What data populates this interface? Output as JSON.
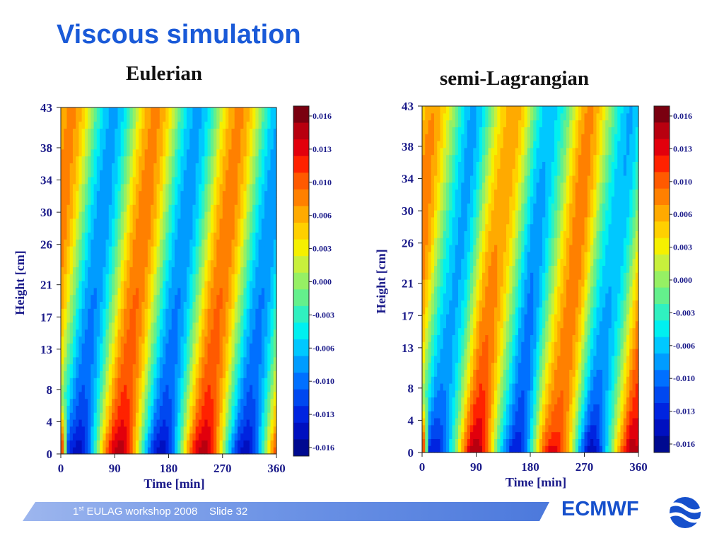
{
  "slide": {
    "title": "Viscous simulation",
    "footer": {
      "ordinal": "1",
      "ordinal_suffix": "st",
      "event": "EULAG workshop 2008",
      "slide": "Slide 32"
    },
    "brand": "ECMWF",
    "colors": {
      "title": "#1a5ad8",
      "brand": "#1650cc",
      "axis_text": "#1b1b8a"
    }
  },
  "chart_data": [
    {
      "type": "heatmap",
      "subtitle": "Eulerian",
      "xlabel": "Time [min]",
      "ylabel": "Height [cm]",
      "xlim": [
        0,
        360
      ],
      "ylim": [
        0,
        43
      ],
      "xticks": [
        0,
        90,
        180,
        270,
        360
      ],
      "yticks": [
        0,
        4,
        8,
        13,
        17,
        21,
        26,
        30,
        34,
        38,
        43
      ],
      "colorbar": {
        "labels": [
          "0.016",
          "0.013",
          "0.010",
          "0.006",
          "0.003",
          "0.000",
          "-0.003",
          "-0.006",
          "-0.010",
          "-0.013",
          "-0.016"
        ],
        "range": [
          -0.0175,
          0.0175
        ],
        "colors": [
          "#7a0010",
          "#b8000f",
          "#e2000c",
          "#ff2200",
          "#ff5a00",
          "#ff8000",
          "#ffaa00",
          "#ffd000",
          "#f5f000",
          "#c8f03c",
          "#96f064",
          "#64f08c",
          "#30f0c0",
          "#00f0f0",
          "#00c8ff",
          "#009cff",
          "#0070ff",
          "#0048f0",
          "#0024e0",
          "#0010c0",
          "#000a90"
        ]
      }
    },
    {
      "type": "heatmap",
      "subtitle": "semi-Lagrangian",
      "xlabel": "Time [min]",
      "ylabel": "Height [cm]",
      "xlim": [
        0,
        360
      ],
      "ylim": [
        0,
        43
      ],
      "xticks": [
        0,
        90,
        180,
        270,
        360
      ],
      "yticks": [
        0,
        4,
        8,
        13,
        17,
        21,
        26,
        30,
        34,
        38,
        43
      ],
      "colorbar": {
        "labels": [
          "0.016",
          "0.013",
          "0.010",
          "0.006",
          "0.003",
          "0.000",
          "-0.003",
          "-0.006",
          "-0.010",
          "-0.013",
          "-0.016"
        ],
        "range": [
          -0.0175,
          0.0175
        ],
        "colors": [
          "#7a0010",
          "#b8000f",
          "#e2000c",
          "#ff2200",
          "#ff5a00",
          "#ff8000",
          "#ffaa00",
          "#ffd000",
          "#f5f000",
          "#c8f03c",
          "#96f064",
          "#64f08c",
          "#30f0c0",
          "#00f0f0",
          "#00c8ff",
          "#009cff",
          "#0070ff",
          "#0048f0",
          "#0024e0",
          "#0010c0",
          "#000a90"
        ]
      }
    }
  ]
}
